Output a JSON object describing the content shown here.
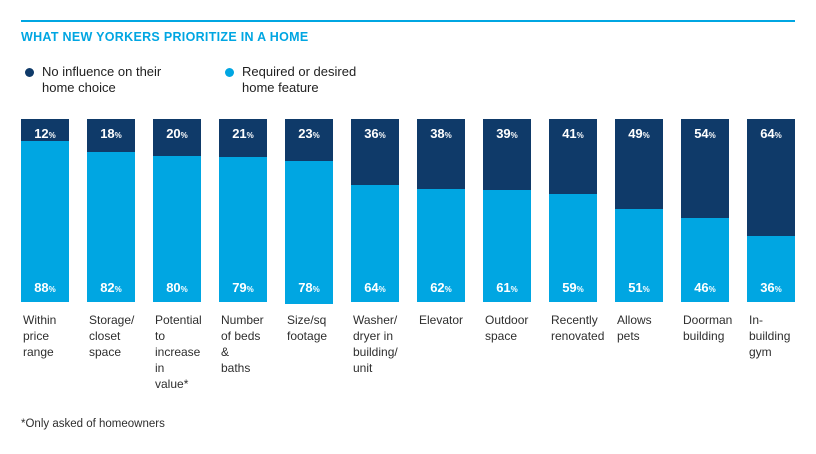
{
  "colors": {
    "navy": "#0F3A69",
    "cyan": "#00A6E2",
    "text": "#1F1F1F",
    "background": "#FFFFFF"
  },
  "footnote": "*Only asked of homeowners",
  "legend": [
    {
      "label": "No influence on their\nhome choice",
      "color": "#0F3A69"
    },
    {
      "label": "Required or desired\nhome feature",
      "color": "#00A6E2"
    }
  ],
  "categories_display": [
    "Within\nprice\nrange",
    "Storage/\ncloset\nspace",
    "Potential\nto\nincrease\nin value*",
    "Number\nof beds &\nbaths",
    "Size/sq\nfootage",
    "Washer/\ndryer in\nbuilding/\nunit",
    "Elevator",
    "Outdoor\nspace",
    "Recently\nrenovated",
    "Allows\npets",
    "Doorman\nbuilding",
    "In-\nbuilding\ngym"
  ],
  "chart_data": {
    "type": "bar",
    "stacked": true,
    "title": "WHAT NEW YORKERS PRIORITIZE IN A HOME",
    "categories": [
      "Within price range",
      "Storage/closet space",
      "Potential to increase in value*",
      "Number of beds & baths",
      "Size/sq footage",
      "Washer/dryer in building/unit",
      "Elevator",
      "Outdoor space",
      "Recently renovated",
      "Allows pets",
      "Doorman building",
      "In-building gym"
    ],
    "series": [
      {
        "name": "No influence on their home choice",
        "color": "#0F3A69",
        "values": [
          12,
          18,
          20,
          21,
          23,
          36,
          38,
          39,
          41,
          49,
          54,
          64
        ]
      },
      {
        "name": "Required or desired home feature",
        "color": "#00A6E2",
        "values": [
          88,
          82,
          80,
          79,
          78,
          64,
          62,
          61,
          59,
          51,
          46,
          36
        ]
      }
    ],
    "value_suffix": "%",
    "ylim": [
      0,
      100
    ],
    "legend_position": "top",
    "grid": false
  }
}
